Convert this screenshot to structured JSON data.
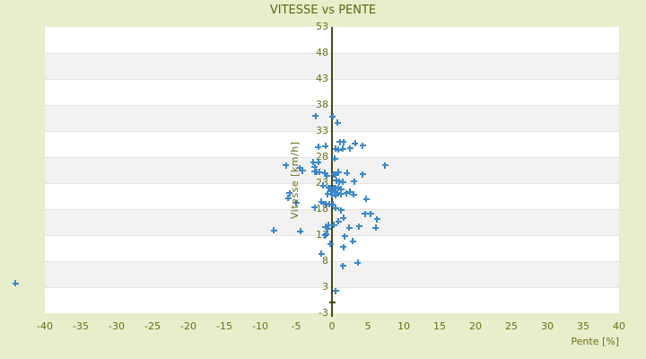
{
  "page": {
    "title": "VITESSE vs PENTE"
  },
  "colors": {
    "page_bg": "#e8edcb",
    "band_light": "#ffffff",
    "band_dark": "#f2f2f2",
    "band_border": "#e3e3e3",
    "tick_text": "#6b7018",
    "title_text": "#5d6614",
    "axis_line": "#454a12",
    "marker_blue": "#3b87c9"
  },
  "chart_data": {
    "type": "scatter",
    "title": "VITESSE vs PENTE",
    "xlabel": "Pente [%]",
    "ylabel": "Vitesse [km/h]",
    "xlim": [
      -40,
      40
    ],
    "ylim": [
      -3,
      53
    ],
    "x_ticks": [
      -40,
      -35,
      -30,
      -25,
      -20,
      -15,
      -10,
      -5,
      0,
      5,
      10,
      15,
      20,
      25,
      30,
      35,
      40
    ],
    "y_tick_labels": [
      "53",
      "48",
      "43",
      "38",
      "33",
      "28",
      "23",
      "18",
      "13",
      "8",
      "3",
      "-3"
    ],
    "y_tick_values": [
      53,
      48,
      43,
      38,
      33,
      28,
      23,
      18,
      13,
      8,
      3,
      -3
    ],
    "grid": "horizontal-bands",
    "legend": "none",
    "marker": "plus",
    "zero_axis_marker": {
      "x": 0,
      "y": 0.1
    },
    "points": [
      [
        -44.1,
        3.7
      ],
      [
        -2.3,
        35.9
      ],
      [
        0.1,
        35.8
      ],
      [
        0.8,
        34.6
      ],
      [
        1.1,
        30.9
      ],
      [
        1.6,
        30.9
      ],
      [
        3.2,
        30.6
      ],
      [
        -1.9,
        29.9
      ],
      [
        -0.9,
        30.1
      ],
      [
        0.5,
        29.6
      ],
      [
        0.9,
        29.4
      ],
      [
        1.5,
        29.6
      ],
      [
        2.5,
        29.7
      ],
      [
        4.3,
        30.2
      ],
      [
        0.4,
        27.7
      ],
      [
        -1.9,
        27.0
      ],
      [
        -2.6,
        27.0
      ],
      [
        -2.4,
        26.1
      ],
      [
        -4.5,
        25.9
      ],
      [
        -6.4,
        26.4
      ],
      [
        7.4,
        26.4
      ],
      [
        -4.1,
        25.4
      ],
      [
        -2.4,
        25.2
      ],
      [
        -2.1,
        25.1
      ],
      [
        -1.7,
        25.1
      ],
      [
        -1.0,
        24.9
      ],
      [
        -0.7,
        24.4
      ],
      [
        0.3,
        24.7
      ],
      [
        0.5,
        24.6
      ],
      [
        0.9,
        25.1
      ],
      [
        2.1,
        24.9
      ],
      [
        4.3,
        24.7
      ],
      [
        3.1,
        23.3
      ],
      [
        0.6,
        23.5
      ],
      [
        1.0,
        23.3
      ],
      [
        1.5,
        23.2
      ],
      [
        -1.2,
        22.5
      ],
      [
        -0.5,
        22.1
      ],
      [
        -0.2,
        22.0
      ],
      [
        0.3,
        22.1
      ],
      [
        0.5,
        22.0
      ],
      [
        0.9,
        22.1
      ],
      [
        1.3,
        21.8
      ],
      [
        -0.1,
        21.4
      ],
      [
        0.4,
        21.3
      ],
      [
        0.8,
        21.1
      ],
      [
        -0.6,
        20.9
      ],
      [
        0.0,
        20.8
      ],
      [
        0.5,
        20.6
      ],
      [
        1.3,
        20.9
      ],
      [
        2.0,
        21.1
      ],
      [
        2.5,
        21.3
      ],
      [
        3.0,
        20.8
      ],
      [
        4.8,
        19.9
      ],
      [
        -6.1,
        20.1
      ],
      [
        -5.9,
        21.1
      ],
      [
        -5.0,
        19.2
      ],
      [
        -1.5,
        19.4
      ],
      [
        -0.9,
        19.0
      ],
      [
        -0.4,
        18.9
      ],
      [
        0.1,
        18.9
      ],
      [
        -2.4,
        18.3
      ],
      [
        0.5,
        18.2
      ],
      [
        1.3,
        17.8
      ],
      [
        5.4,
        17.1
      ],
      [
        4.6,
        17.1
      ],
      [
        1.6,
        16.3
      ],
      [
        6.3,
        16.1
      ],
      [
        0.9,
        15.6
      ],
      [
        0.3,
        14.9
      ],
      [
        -0.6,
        14.2
      ],
      [
        2.4,
        14.4
      ],
      [
        3.8,
        14.7
      ],
      [
        6.1,
        14.4
      ],
      [
        -0.9,
        14.6
      ],
      [
        -0.5,
        14.9
      ],
      [
        -4.4,
        13.7
      ],
      [
        -8.1,
        13.9
      ],
      [
        -1.0,
        13.0
      ],
      [
        -0.8,
        13.2
      ],
      [
        1.8,
        12.8
      ],
      [
        2.9,
        11.8
      ],
      [
        -0.2,
        11.3
      ],
      [
        1.6,
        10.7
      ],
      [
        -1.5,
        9.4
      ],
      [
        1.5,
        7.1
      ],
      [
        3.6,
        7.7
      ],
      [
        0.5,
        2.3
      ]
    ]
  }
}
